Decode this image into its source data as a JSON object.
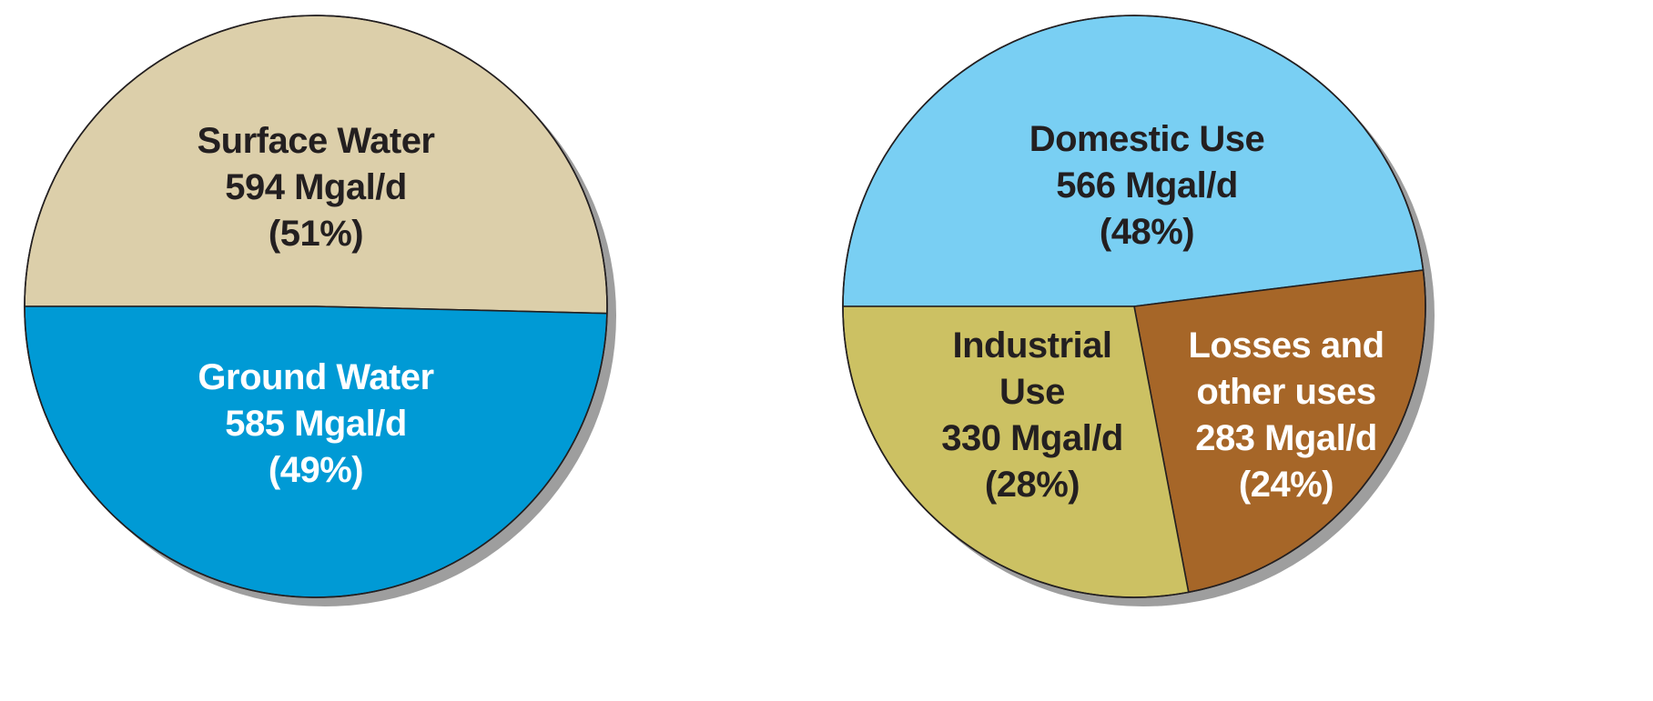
{
  "chart_data": [
    {
      "type": "pie",
      "slices": [
        {
          "label_lines": [
            "Surface Water",
            "594 Mgal/d",
            "(51%)"
          ],
          "value": 594,
          "percent": 51,
          "color": "#dccfaa",
          "text_color": "#231f20"
        },
        {
          "label_lines": [
            "Ground Water",
            "585 Mgal/d",
            "(49%)"
          ],
          "value": 585,
          "percent": 49,
          "color": "#009ad5",
          "text_color": "#ffffff"
        }
      ]
    },
    {
      "type": "pie",
      "slices": [
        {
          "label_lines": [
            "Domestic Use",
            "566 Mgal/d",
            "(48%)"
          ],
          "value": 566,
          "percent": 48,
          "color": "#79cff3",
          "text_color": "#231f20"
        },
        {
          "label_lines": [
            "Losses and",
            "other uses",
            "283 Mgal/d",
            "(24%)"
          ],
          "value": 283,
          "percent": 24,
          "color": "#a66628",
          "text_color": "#ffffff"
        },
        {
          "label_lines": [
            "Industrial",
            "Use",
            "330 Mgal/d",
            "(28%)"
          ],
          "value": 330,
          "percent": 28,
          "color": "#ccc163",
          "text_color": "#231f20"
        }
      ]
    }
  ]
}
